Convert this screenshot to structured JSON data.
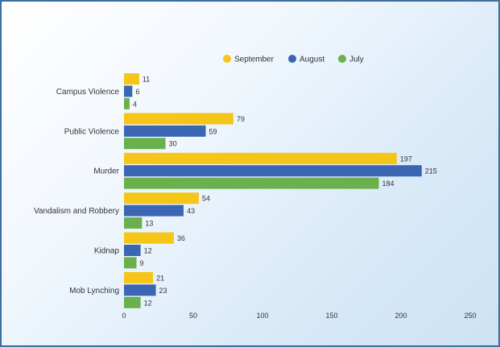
{
  "chart_data": {
    "type": "bar",
    "orientation": "horizontal",
    "categories": [
      "Campus Violence",
      "Public Violence",
      "Murder",
      "Vandalism and Robbery",
      "Kidnap",
      "Mob Lynching"
    ],
    "series": [
      {
        "name": "September",
        "color": "#f5c518",
        "values": [
          11,
          79,
          197,
          54,
          36,
          21
        ]
      },
      {
        "name": "August",
        "color": "#3a66b4",
        "values": [
          6,
          59,
          215,
          43,
          12,
          23
        ]
      },
      {
        "name": "July",
        "color": "#6ab04c",
        "values": [
          4,
          30,
          184,
          13,
          9,
          12
        ]
      }
    ],
    "xlim": [
      0,
      250
    ],
    "xticks": [
      "0",
      "50",
      "100",
      "150",
      "200",
      "250"
    ],
    "legend_position": "top-center",
    "grid": false,
    "title": "",
    "xlabel": "",
    "ylabel": ""
  }
}
